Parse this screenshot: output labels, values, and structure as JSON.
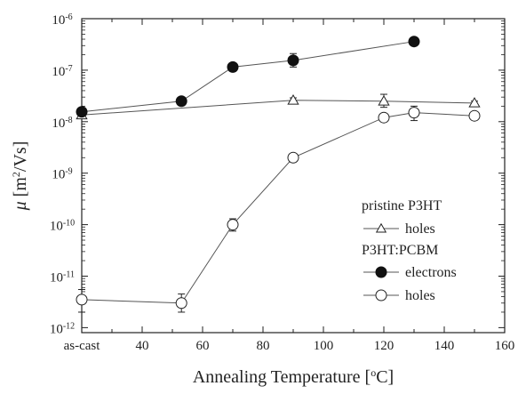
{
  "chart_data": {
    "type": "line",
    "x_scale": "linear",
    "y_scale": "log",
    "xlim": [
      20,
      160
    ],
    "ylim": [
      8e-13,
      1e-06
    ],
    "x_ticks": [
      {
        "value": 20,
        "label": "as-cast"
      },
      {
        "value": 40,
        "label": "40"
      },
      {
        "value": 60,
        "label": "60"
      },
      {
        "value": 80,
        "label": "80"
      },
      {
        "value": 100,
        "label": "100"
      },
      {
        "value": 120,
        "label": "120"
      },
      {
        "value": 140,
        "label": "140"
      },
      {
        "value": 160,
        "label": "160"
      }
    ],
    "y_ticks": [
      {
        "value": 1e-12,
        "base": "10",
        "exp": "-12"
      },
      {
        "value": 1e-11,
        "base": "10",
        "exp": "-11"
      },
      {
        "value": 1e-10,
        "base": "10",
        "exp": "-10"
      },
      {
        "value": 1e-09,
        "base": "10",
        "exp": "-9"
      },
      {
        "value": 1e-08,
        "base": "10",
        "exp": "-8"
      },
      {
        "value": 1e-07,
        "base": "10",
        "exp": "-7"
      },
      {
        "value": 1e-06,
        "base": "10",
        "exp": "-6"
      }
    ],
    "xlabel": {
      "main": "Annealing Temperature [",
      "sup": "o",
      "tail": "C]"
    },
    "ylabel": {
      "mu": "μ",
      "pre": " [m",
      "sup": "2",
      "tail": "/Vs]"
    },
    "legend": {
      "placement": "bottom-right",
      "groups": [
        {
          "title": "pristine P3HT",
          "entries": [
            0
          ]
        },
        {
          "title": "P3HT:PCBM",
          "entries": [
            1,
            2
          ]
        }
      ]
    },
    "series": [
      {
        "name": "holes",
        "group": "pristine P3HT",
        "marker": "open-triangle",
        "x": [
          20,
          90,
          120,
          150
        ],
        "y": [
          1.35e-08,
          2.6e-08,
          2.5e-08,
          2.3e-08
        ],
        "err_low": [
          1.2e-08,
          2.3e-08,
          1.9e-08,
          2.1e-08
        ],
        "err_high": [
          1.5e-08,
          2.9e-08,
          3.4e-08,
          2.5e-08
        ]
      },
      {
        "name": "electrons",
        "group": "P3HT:PCBM",
        "marker": "filled-circle",
        "x": [
          20,
          53,
          70,
          90,
          130
        ],
        "y": [
          1.55e-08,
          2.5e-08,
          1.15e-07,
          1.55e-07,
          3.6e-07
        ],
        "err_low": [
          1.35e-08,
          2.3e-08,
          1e-07,
          1.15e-07,
          3.1e-07
        ],
        "err_high": [
          1.75e-08,
          2.7e-08,
          1.3e-07,
          2.1e-07,
          4.1e-07
        ]
      },
      {
        "name": "holes",
        "group": "P3HT:PCBM",
        "marker": "open-circle",
        "x": [
          20,
          53,
          70,
          90,
          120,
          130,
          150
        ],
        "y": [
          3.5e-12,
          3e-12,
          1e-10,
          2e-09,
          1.2e-08,
          1.5e-08,
          1.3e-08
        ],
        "err_low": [
          2e-12,
          2e-12,
          7.5e-11,
          1.7e-09,
          1e-08,
          1.05e-08,
          1.1e-08
        ],
        "err_high": [
          5.5e-12,
          4.5e-12,
          1.3e-10,
          2.3e-09,
          1.4e-08,
          2e-08,
          1.5e-08
        ]
      }
    ],
    "colors": {
      "line": "#555555",
      "marker_fill": "#111111",
      "axis": "#222222"
    }
  }
}
